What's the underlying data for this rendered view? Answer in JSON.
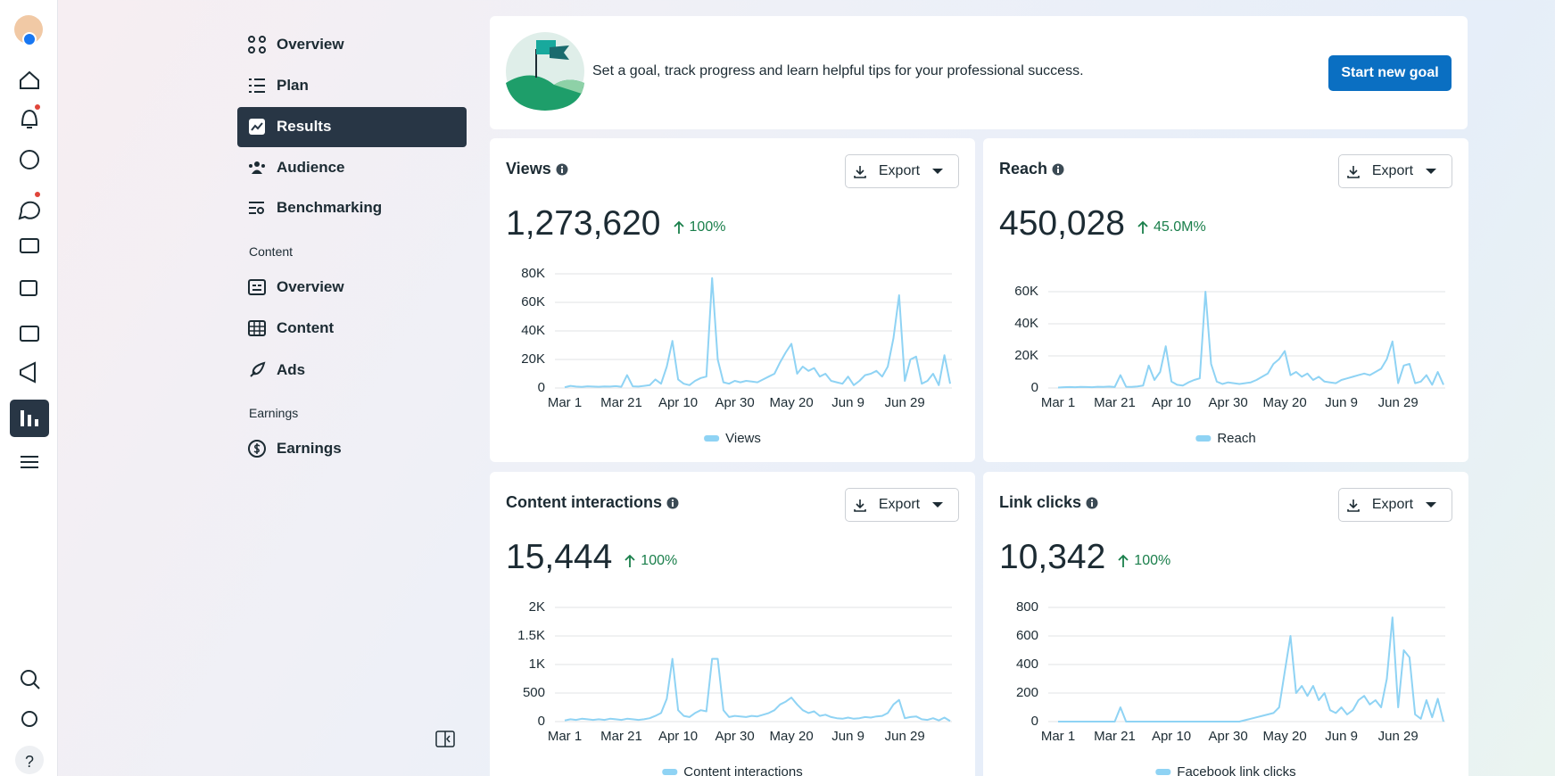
{
  "nav": {
    "items": [
      "Overview",
      "Plan",
      "Results",
      "Audience",
      "Benchmarking"
    ],
    "content_section": "Content",
    "content_items": [
      "Overview",
      "Content",
      "Ads"
    ],
    "earnings_section": "Earnings",
    "earnings_items": [
      "Earnings"
    ],
    "help": "?"
  },
  "goal": {
    "text": "Set a goal, track progress and learn helpful tips for your professional success.",
    "button": "Start new goal"
  },
  "chart_data": [
    {
      "type": "line",
      "title": "Views",
      "total": "1,273,620",
      "change": "100%",
      "export": "Export",
      "categories": [
        "Mar 1",
        null,
        null,
        null,
        null,
        null,
        null,
        null,
        null,
        null,
        "Mar 21",
        null,
        null,
        null,
        null,
        null,
        null,
        null,
        null,
        null,
        "Apr 10",
        null,
        null,
        null,
        null,
        null,
        null,
        null,
        null,
        null,
        "Apr 30",
        null,
        null,
        null,
        null,
        null,
        null,
        null,
        null,
        null,
        "May 20",
        null,
        null,
        null,
        null,
        null,
        null,
        null,
        null,
        null,
        "Jun 9",
        null,
        null,
        null,
        null,
        null,
        null,
        null,
        null,
        null,
        "Jun 29",
        null,
        null,
        null,
        null,
        null,
        null,
        null,
        null
      ],
      "series": [
        {
          "name": "Views",
          "color": "#8fd3f4",
          "values": [
            500,
            1500,
            1000,
            800,
            1200,
            1000,
            900,
            1100,
            1000,
            1300,
            900,
            9000,
            1200,
            1000,
            1500,
            2000,
            6000,
            3000,
            15000,
            33000,
            6000,
            3000,
            2000,
            5000,
            7000,
            8000,
            77000,
            20000,
            4000,
            3000,
            5000,
            4000,
            5000,
            4500,
            4000,
            6000,
            8000,
            10000,
            18000,
            25000,
            31000,
            10000,
            15000,
            12000,
            14000,
            8000,
            10000,
            5000,
            4000,
            3000,
            8000,
            2000,
            5000,
            9000,
            10000,
            12000,
            8000,
            15000,
            35000,
            65000,
            5000,
            20000,
            22000,
            3000,
            5000,
            10000,
            2000,
            23000,
            3000
          ]
        }
      ],
      "ylim": [
        0,
        80000
      ],
      "yticks": [
        0,
        {
          "value": 20000,
          "label": "20K"
        },
        {
          "value": 40000,
          "label": "40K"
        },
        {
          "value": 60000,
          "label": "60K"
        },
        {
          "value": 80000,
          "label": "80K"
        }
      ],
      "grid": true
    },
    {
      "type": "line",
      "title": "Reach",
      "total": "450,028",
      "change": "45.0M%",
      "export": "Export",
      "categories": [
        "Mar 1",
        null,
        null,
        null,
        null,
        null,
        null,
        null,
        null,
        null,
        "Mar 21",
        null,
        null,
        null,
        null,
        null,
        null,
        null,
        null,
        null,
        "Apr 10",
        null,
        null,
        null,
        null,
        null,
        null,
        null,
        null,
        null,
        "Apr 30",
        null,
        null,
        null,
        null,
        null,
        null,
        null,
        null,
        null,
        "May 20",
        null,
        null,
        null,
        null,
        null,
        null,
        null,
        null,
        null,
        "Jun 9",
        null,
        null,
        null,
        null,
        null,
        null,
        null,
        null,
        null,
        "Jun 29",
        null,
        null,
        null,
        null,
        null,
        null,
        null,
        null
      ],
      "series": [
        {
          "name": "Reach",
          "color": "#8fd3f4",
          "values": [
            300,
            500,
            600,
            500,
            700,
            600,
            500,
            800,
            700,
            900,
            600,
            8000,
            800,
            700,
            1000,
            1500,
            14000,
            5000,
            10000,
            26000,
            4000,
            2000,
            1500,
            3500,
            5000,
            6000,
            60000,
            15000,
            4000,
            2500,
            3500,
            3000,
            2500,
            3000,
            3500,
            5000,
            7000,
            9000,
            15000,
            18000,
            23000,
            8000,
            10000,
            7000,
            9000,
            5000,
            7000,
            4000,
            3500,
            3000,
            5000,
            6000,
            7000,
            8000,
            9000,
            8000,
            10000,
            12000,
            18000,
            29000,
            3000,
            14000,
            15000,
            3000,
            4000,
            8000,
            2000,
            10000,
            2000
          ]
        }
      ],
      "ylim": [
        0,
        60000
      ],
      "yticks": [
        0,
        {
          "value": 20000,
          "label": "20K"
        },
        {
          "value": 40000,
          "label": "40K"
        },
        {
          "value": 60000,
          "label": "60K"
        }
      ],
      "grid": true
    },
    {
      "type": "line",
      "title": "Content interactions",
      "total": "15,444",
      "change": "100%",
      "export": "Export",
      "categories": [
        "Mar 1",
        null,
        null,
        null,
        null,
        null,
        null,
        null,
        null,
        null,
        "Mar 21",
        null,
        null,
        null,
        null,
        null,
        null,
        null,
        null,
        null,
        "Apr 10",
        null,
        null,
        null,
        null,
        null,
        null,
        null,
        null,
        null,
        "Apr 30",
        null,
        null,
        null,
        null,
        null,
        null,
        null,
        null,
        null,
        "May 20",
        null,
        null,
        null,
        null,
        null,
        null,
        null,
        null,
        null,
        "Jun 9",
        null,
        null,
        null,
        null,
        null,
        null,
        null,
        null,
        null,
        "Jun 29",
        null,
        null,
        null,
        null,
        null,
        null,
        null,
        null
      ],
      "series": [
        {
          "name": "Content interactions",
          "color": "#8fd3f4",
          "values": [
            20,
            40,
            30,
            50,
            40,
            30,
            40,
            30,
            50,
            40,
            30,
            50,
            40,
            30,
            40,
            60,
            100,
            150,
            400,
            1100,
            200,
            100,
            80,
            150,
            200,
            180,
            1100,
            1100,
            200,
            80,
            100,
            90,
            80,
            100,
            90,
            120,
            150,
            200,
            300,
            350,
            420,
            300,
            200,
            150,
            180,
            100,
            120,
            80,
            60,
            50,
            70,
            50,
            60,
            80,
            70,
            90,
            100,
            150,
            300,
            380,
            60,
            80,
            90,
            40,
            30,
            60,
            20,
            70,
            10
          ]
        }
      ],
      "ylim": [
        0,
        2000
      ],
      "yticks": [
        0,
        500,
        {
          "value": 1000,
          "label": "1K"
        },
        {
          "value": 1500,
          "label": "1.5K"
        },
        {
          "value": 2000,
          "label": "2K"
        }
      ],
      "grid": true
    },
    {
      "type": "line",
      "title": "Link clicks",
      "total": "10,342",
      "change": "100%",
      "export": "Export",
      "categories": [
        "Mar 1",
        null,
        null,
        null,
        null,
        null,
        null,
        null,
        null,
        null,
        "Mar 21",
        null,
        null,
        null,
        null,
        null,
        null,
        null,
        null,
        null,
        "Apr 10",
        null,
        null,
        null,
        null,
        null,
        null,
        null,
        null,
        null,
        "Apr 30",
        null,
        null,
        null,
        null,
        null,
        null,
        null,
        null,
        null,
        "May 20",
        null,
        null,
        null,
        null,
        null,
        null,
        null,
        null,
        null,
        "Jun 9",
        null,
        null,
        null,
        null,
        null,
        null,
        null,
        null,
        null,
        "Jun 29",
        null,
        null,
        null,
        null,
        null,
        null,
        null,
        null
      ],
      "series": [
        {
          "name": "Facebook link clicks",
          "color": "#8fd3f4",
          "values": [
            0,
            0,
            0,
            0,
            0,
            0,
            0,
            0,
            0,
            0,
            0,
            100,
            0,
            0,
            0,
            0,
            0,
            0,
            0,
            0,
            0,
            0,
            0,
            0,
            0,
            0,
            0,
            0,
            0,
            0,
            0,
            0,
            0,
            10,
            20,
            30,
            40,
            50,
            60,
            100,
            350,
            600,
            200,
            250,
            180,
            250,
            150,
            200,
            80,
            60,
            100,
            50,
            80,
            150,
            180,
            120,
            150,
            100,
            300,
            730,
            100,
            500,
            450,
            50,
            20,
            150,
            30,
            160,
            0
          ]
        }
      ],
      "ylim": [
        0,
        800
      ],
      "yticks": [
        0,
        200,
        400,
        600,
        800
      ],
      "grid": true
    }
  ]
}
